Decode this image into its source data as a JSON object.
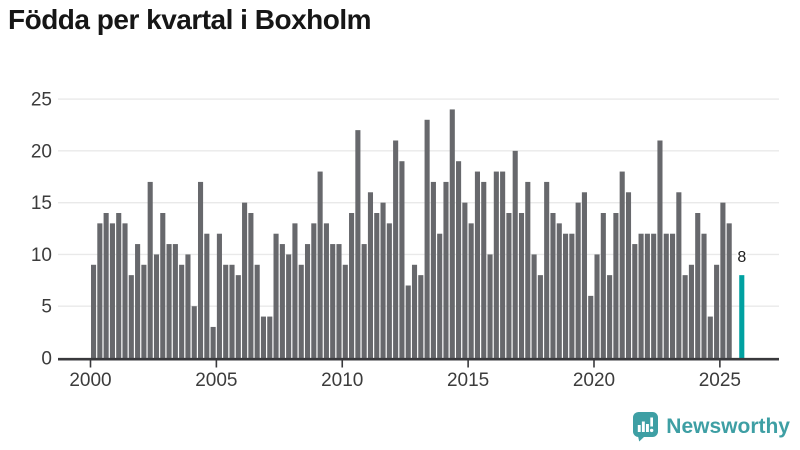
{
  "header": {
    "title": "Födda per kvartal i Boxholm"
  },
  "chart_data": {
    "type": "bar",
    "title": "Födda per kvartal i Boxholm",
    "frequency": "quarterly",
    "x_start": "2000 Q1",
    "x_end_gray": "2025 Q2",
    "gap_before_highlight": true,
    "values": [
      9,
      13,
      14,
      13,
      14,
      13,
      8,
      11,
      9,
      17,
      10,
      14,
      11,
      11,
      9,
      10,
      5,
      17,
      12,
      3,
      12,
      9,
      9,
      8,
      15,
      14,
      9,
      4,
      4,
      12,
      11,
      10,
      13,
      9,
      11,
      13,
      18,
      13,
      11,
      11,
      9,
      14,
      22,
      11,
      16,
      14,
      15,
      13,
      21,
      19,
      7,
      9,
      8,
      23,
      17,
      12,
      17,
      24,
      19,
      15,
      13,
      18,
      17,
      10,
      18,
      18,
      14,
      20,
      14,
      17,
      10,
      8,
      17,
      14,
      13,
      12,
      12,
      15,
      16,
      6,
      10,
      14,
      8,
      14,
      18,
      16,
      11,
      12,
      12,
      12,
      21,
      12,
      12,
      16,
      8,
      9,
      14,
      12,
      4,
      9,
      15,
      13
    ],
    "highlight": {
      "value": 8,
      "label": "8"
    },
    "x_tick_labels": [
      "2000",
      "2005",
      "2010",
      "2015",
      "2020",
      "2025"
    ],
    "y_tick_values": [
      0,
      5,
      10,
      15,
      20,
      25
    ],
    "ylim": [
      0,
      25
    ],
    "grid": "horizontal",
    "legend": "none",
    "colors": {
      "bar": "#67686C",
      "highlight": "#00A1A1",
      "axis": "#39393C",
      "gridline": "#E9E9E9",
      "tick_label": "#3C3C3C",
      "value_label": "#1D1D1D"
    }
  },
  "footer": {
    "logo_text": "Newsworthy",
    "logo_color": "#3E9FA4",
    "logo_icon": "newsworthy-speech-bubble-chart-icon"
  }
}
